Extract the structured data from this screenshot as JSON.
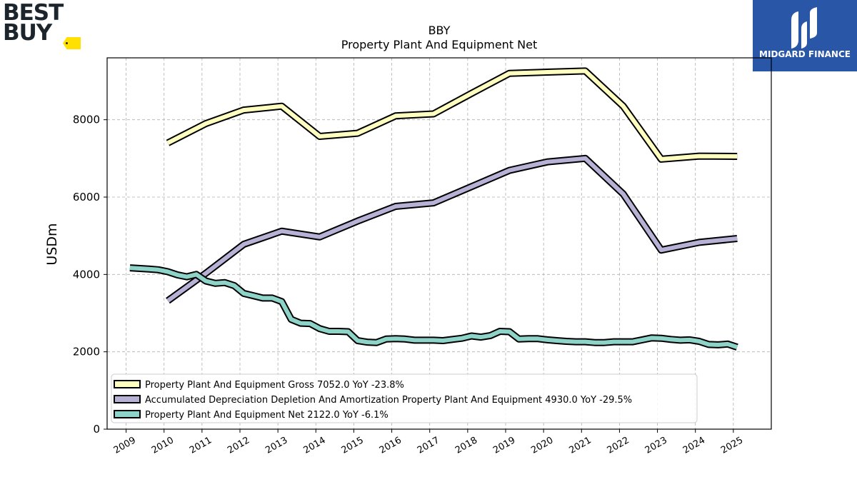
{
  "brand": {
    "logo_line1": "BEST",
    "logo_line2": "BUY",
    "watermark": "MIDGARD FINANCE"
  },
  "chart_data": {
    "type": "line",
    "title": "BBY",
    "subtitle": "Property Plant And Equipment Net",
    "xlabel": "",
    "ylabel": "USDm",
    "xlim": [
      2008.5,
      2026.0
    ],
    "ylim": [
      0,
      9600
    ],
    "x_ticks": [
      "2009",
      "2010",
      "2011",
      "2012",
      "2013",
      "2014",
      "2015",
      "2016",
      "2017",
      "2018",
      "2019",
      "2020",
      "2021",
      "2022",
      "2023",
      "2024",
      "2025"
    ],
    "y_ticks": [
      0,
      2000,
      4000,
      6000,
      8000
    ],
    "grid": true,
    "legend_position": "lower-left",
    "series": [
      {
        "name": "Property Plant And Equipment Gross",
        "legend": "Property Plant And Equipment Gross  7052.0 YoY -23.8%",
        "color": "#ffffbf",
        "points": [
          [
            2010.1,
            7400
          ],
          [
            2011.1,
            7900
          ],
          [
            2012.1,
            8250
          ],
          [
            2013.1,
            8350
          ],
          [
            2014.1,
            7570
          ],
          [
            2015.1,
            7650
          ],
          [
            2016.1,
            8100
          ],
          [
            2017.1,
            8150
          ],
          [
            2018.1,
            8680
          ],
          [
            2019.1,
            9200
          ],
          [
            2020.1,
            9230
          ],
          [
            2021.1,
            9260
          ],
          [
            2022.1,
            8350
          ],
          [
            2023.1,
            6980
          ],
          [
            2024.1,
            7060
          ],
          [
            2025.1,
            7052
          ]
        ]
      },
      {
        "name": "Accumulated Depreciation Depletion And Amortization Property Plant And Equipment",
        "legend": "Accumulated Depreciation Depletion And Amortization Property Plant And Equipment  4930.0 YoY -29.5%",
        "color": "#b6b1d5",
        "points": [
          [
            2010.1,
            3320
          ],
          [
            2011.1,
            4030
          ],
          [
            2012.1,
            4780
          ],
          [
            2013.1,
            5120
          ],
          [
            2014.1,
            4970
          ],
          [
            2015.1,
            5380
          ],
          [
            2016.1,
            5760
          ],
          [
            2017.1,
            5850
          ],
          [
            2018.1,
            6270
          ],
          [
            2019.1,
            6690
          ],
          [
            2020.1,
            6910
          ],
          [
            2021.1,
            7000
          ],
          [
            2022.1,
            6080
          ],
          [
            2023.1,
            4630
          ],
          [
            2024.1,
            4830
          ],
          [
            2025.1,
            4930
          ]
        ]
      },
      {
        "name": "Property Plant And Equipment Net",
        "legend": "Property Plant And Equipment Net  2122.0 YoY -6.1%",
        "color": "#8dd3c7",
        "points": [
          [
            2009.1,
            4170
          ],
          [
            2009.6,
            4140
          ],
          [
            2009.85,
            4120
          ],
          [
            2010.1,
            4070
          ],
          [
            2010.35,
            3990
          ],
          [
            2010.6,
            3940
          ],
          [
            2010.85,
            4000
          ],
          [
            2011.1,
            3830
          ],
          [
            2011.35,
            3770
          ],
          [
            2011.6,
            3790
          ],
          [
            2011.85,
            3710
          ],
          [
            2012.1,
            3510
          ],
          [
            2012.35,
            3450
          ],
          [
            2012.6,
            3390
          ],
          [
            2012.85,
            3390
          ],
          [
            2013.1,
            3300
          ],
          [
            2013.35,
            2840
          ],
          [
            2013.6,
            2740
          ],
          [
            2013.85,
            2730
          ],
          [
            2014.1,
            2600
          ],
          [
            2014.35,
            2530
          ],
          [
            2014.6,
            2530
          ],
          [
            2014.85,
            2520
          ],
          [
            2015.1,
            2290
          ],
          [
            2015.35,
            2250
          ],
          [
            2015.6,
            2240
          ],
          [
            2015.85,
            2330
          ],
          [
            2016.1,
            2340
          ],
          [
            2016.35,
            2330
          ],
          [
            2016.6,
            2300
          ],
          [
            2016.85,
            2300
          ],
          [
            2017.1,
            2300
          ],
          [
            2017.35,
            2290
          ],
          [
            2017.6,
            2320
          ],
          [
            2017.85,
            2350
          ],
          [
            2018.1,
            2410
          ],
          [
            2018.35,
            2380
          ],
          [
            2018.6,
            2420
          ],
          [
            2018.85,
            2530
          ],
          [
            2019.1,
            2520
          ],
          [
            2019.35,
            2330
          ],
          [
            2019.6,
            2340
          ],
          [
            2019.85,
            2340
          ],
          [
            2020.1,
            2310
          ],
          [
            2020.35,
            2290
          ],
          [
            2020.6,
            2270
          ],
          [
            2020.85,
            2260
          ],
          [
            2021.1,
            2260
          ],
          [
            2021.35,
            2240
          ],
          [
            2021.6,
            2240
          ],
          [
            2021.85,
            2260
          ],
          [
            2022.1,
            2260
          ],
          [
            2022.35,
            2260
          ],
          [
            2022.6,
            2310
          ],
          [
            2022.85,
            2360
          ],
          [
            2023.1,
            2350
          ],
          [
            2023.35,
            2320
          ],
          [
            2023.6,
            2300
          ],
          [
            2023.85,
            2310
          ],
          [
            2024.1,
            2270
          ],
          [
            2024.35,
            2190
          ],
          [
            2024.6,
            2180
          ],
          [
            2024.85,
            2200
          ],
          [
            2025.1,
            2122
          ]
        ]
      }
    ]
  }
}
